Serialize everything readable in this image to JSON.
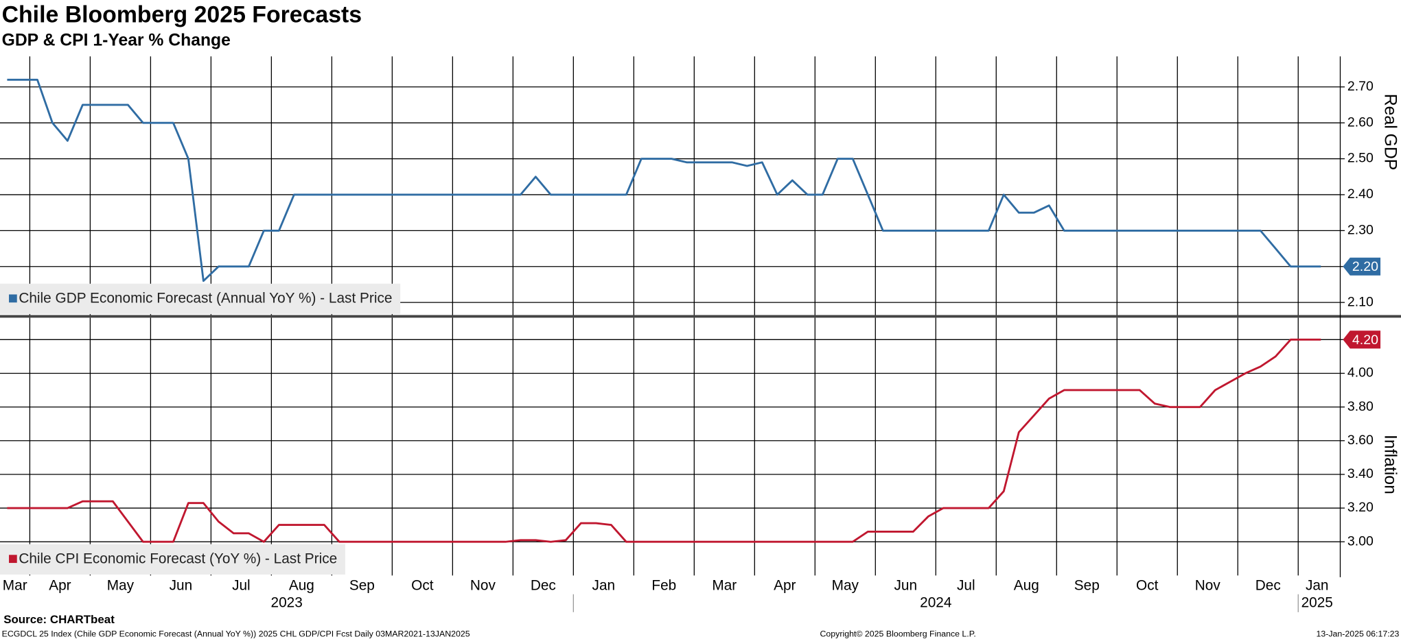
{
  "chart_data": [
    {
      "type": "line",
      "title": "Chile Bloomberg 2025 Forecasts",
      "subtitle": "GDP & CPI 1-Year % Change",
      "axis_label": "Real GDP",
      "ylim": [
        2.065,
        2.785
      ],
      "yticks": [
        {
          "value": 2.1,
          "label": "2.10"
        },
        {
          "value": 2.2,
          "label": "2.20"
        },
        {
          "value": 2.3,
          "label": "2.30"
        },
        {
          "value": 2.4,
          "label": "2.40"
        },
        {
          "value": 2.5,
          "label": "2.50"
        },
        {
          "value": 2.6,
          "label": "2.60"
        },
        {
          "value": 2.7,
          "label": "2.70"
        }
      ],
      "grid": true,
      "legend": "bottom-left",
      "series": [
        {
          "name": "Chile GDP Economic Forecast (Annual YoY %) - Last Price",
          "color": "#2f6ca3",
          "values": [
            2.72,
            2.72,
            2.72,
            2.6,
            2.55,
            2.65,
            2.65,
            2.65,
            2.65,
            2.6,
            2.6,
            2.6,
            2.5,
            2.16,
            2.2,
            2.2,
            2.2,
            2.3,
            2.3,
            2.4,
            2.4,
            2.4,
            2.4,
            2.4,
            2.4,
            2.4,
            2.4,
            2.4,
            2.4,
            2.4,
            2.4,
            2.4,
            2.4,
            2.4,
            2.4,
            2.45,
            2.4,
            2.4,
            2.4,
            2.4,
            2.4,
            2.4,
            2.5,
            2.5,
            2.5,
            2.49,
            2.49,
            2.49,
            2.49,
            2.48,
            2.49,
            2.4,
            2.44,
            2.4,
            2.4,
            2.5,
            2.5,
            2.4,
            2.3,
            2.3,
            2.3,
            2.3,
            2.3,
            2.3,
            2.3,
            2.3,
            2.4,
            2.35,
            2.35,
            2.37,
            2.3,
            2.3,
            2.3,
            2.3,
            2.3,
            2.3,
            2.3,
            2.3,
            2.3,
            2.3,
            2.3,
            2.3,
            2.3,
            2.3,
            2.25,
            2.2,
            2.2,
            2.2
          ],
          "value_labels": [
            null,
            null,
            null,
            null,
            null,
            null,
            null,
            null,
            null,
            null,
            null,
            null,
            null,
            null,
            null,
            null,
            null,
            null,
            null,
            null,
            null,
            null,
            null,
            null,
            null,
            null,
            null,
            null,
            null,
            null,
            null,
            null,
            null,
            null,
            null,
            null,
            null,
            null,
            null,
            null,
            null,
            null,
            null,
            null,
            null,
            null,
            null,
            null,
            null,
            null,
            null,
            null,
            null,
            null,
            null,
            null,
            null,
            null,
            null,
            null,
            null,
            null,
            null,
            null,
            null,
            null,
            null,
            null,
            null,
            null,
            null,
            null,
            null,
            null,
            null,
            null,
            null,
            null,
            null,
            null,
            null,
            null,
            null,
            null,
            null,
            null,
            null,
            "2.20"
          ]
        }
      ]
    },
    {
      "type": "line",
      "axis_label": "Inflation",
      "ylim": [
        2.8,
        4.33
      ],
      "yticks": [
        {
          "value": 3.0,
          "label": "3.00"
        },
        {
          "value": 3.2,
          "label": "3.20"
        },
        {
          "value": 3.4,
          "label": "3.40"
        },
        {
          "value": 3.6,
          "label": "3.60"
        },
        {
          "value": 3.8,
          "label": "3.80"
        },
        {
          "value": 4.0,
          "label": "4.00"
        },
        {
          "value": 4.2,
          "label": "4.20"
        }
      ],
      "grid": true,
      "legend": "bottom-left",
      "categories": [
        "Mar",
        null,
        "Apr",
        null,
        null,
        null,
        "May",
        null,
        null,
        null,
        "Jun",
        null,
        null,
        null,
        "Jul",
        null,
        null,
        null,
        "Aug",
        null,
        null,
        null,
        "Sep",
        null,
        null,
        null,
        "Oct",
        null,
        null,
        null,
        "Nov",
        null,
        null,
        null,
        "Dec",
        null,
        null,
        null,
        "Jan",
        null,
        null,
        null,
        "Feb",
        null,
        null,
        null,
        "Mar",
        null,
        null,
        null,
        "Apr",
        null,
        null,
        null,
        "May",
        null,
        null,
        null,
        "Jun",
        null,
        null,
        null,
        "Jul",
        null,
        null,
        null,
        "Aug",
        null,
        null,
        null,
        "Sep",
        null,
        null,
        null,
        "Oct",
        null,
        null,
        null,
        "Nov",
        null,
        null,
        null,
        "Dec",
        null,
        null,
        null,
        "Jan",
        null
      ],
      "years": [
        "2023",
        "2024",
        "2025"
      ],
      "series": [
        {
          "name": "Chile CPI Economic Forecast (YoY %) - Last Price",
          "color": "#c0172f",
          "values": [
            3.2,
            3.2,
            3.2,
            3.2,
            3.2,
            3.24,
            3.24,
            3.24,
            3.12,
            3.0,
            3.0,
            3.0,
            3.23,
            3.23,
            3.12,
            3.05,
            3.05,
            3.0,
            3.1,
            3.1,
            3.1,
            3.1,
            3.0,
            3.0,
            3.0,
            3.0,
            3.0,
            3.0,
            3.0,
            3.0,
            3.0,
            3.0,
            3.0,
            3.0,
            3.01,
            3.01,
            3.0,
            3.01,
            3.11,
            3.11,
            3.1,
            3.0,
            3.0,
            3.0,
            3.0,
            3.0,
            3.0,
            3.0,
            3.0,
            3.0,
            3.0,
            3.0,
            3.0,
            3.0,
            3.0,
            3.0,
            3.0,
            3.06,
            3.06,
            3.06,
            3.06,
            3.15,
            3.2,
            3.2,
            3.2,
            3.2,
            3.3,
            3.65,
            3.75,
            3.85,
            3.9,
            3.9,
            3.9,
            3.9,
            3.9,
            3.9,
            3.82,
            3.8,
            3.8,
            3.8,
            3.9,
            3.95,
            4.0,
            4.04,
            4.1,
            4.2,
            4.2,
            4.2
          ],
          "value_labels": [
            null,
            null,
            null,
            null,
            null,
            null,
            null,
            null,
            null,
            null,
            null,
            null,
            null,
            null,
            null,
            null,
            null,
            null,
            null,
            null,
            null,
            null,
            null,
            null,
            null,
            null,
            null,
            null,
            null,
            null,
            null,
            null,
            null,
            null,
            null,
            null,
            null,
            null,
            null,
            null,
            null,
            null,
            null,
            null,
            null,
            null,
            null,
            null,
            null,
            null,
            null,
            null,
            null,
            null,
            null,
            null,
            null,
            null,
            null,
            null,
            null,
            null,
            null,
            null,
            null,
            null,
            null,
            null,
            null,
            null,
            null,
            null,
            null,
            null,
            null,
            null,
            null,
            null,
            null,
            null,
            null,
            null,
            null,
            null,
            null,
            null,
            null,
            "4.20"
          ]
        }
      ]
    }
  ],
  "footer": {
    "source": "Source: CHARTbeat",
    "description": "ECGDCL 25 Index (Chile GDP Economic Forecast (Annual YoY %)) 2025 CHL GDP/CPI Fcst  Daily 03MAR2021-13JAN2025",
    "copyright": "Copyright© 2025 Bloomberg Finance L.P.",
    "timestamp": "13-Jan-2025 06:17:23"
  }
}
